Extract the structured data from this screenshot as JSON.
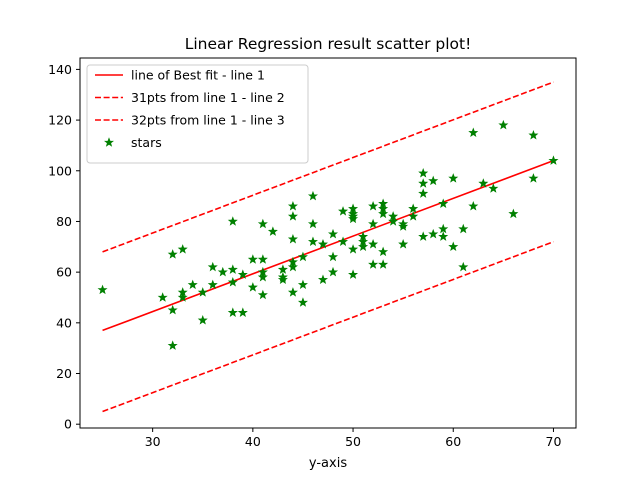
{
  "chart_data": {
    "type": "scatter",
    "title": "Linear Regression result scatter plot!",
    "xlabel": "y-axis",
    "ylabel": "",
    "xlim": [
      22.75,
      72.25
    ],
    "ylim": [
      -1.5,
      144.5
    ],
    "xticks": [
      30,
      40,
      50,
      60,
      70
    ],
    "yticks": [
      0,
      20,
      40,
      60,
      80,
      100,
      120,
      140
    ],
    "grid": false,
    "legend_position": "top-left",
    "lines": [
      {
        "name": "line of Best fit - line 1",
        "color": "#ff0000",
        "style": "solid",
        "x": [
          25,
          70
        ],
        "y": [
          37,
          104
        ]
      },
      {
        "name": "31pts from line 1 - line 2",
        "color": "#ff0000",
        "style": "dashed",
        "x": [
          25,
          70
        ],
        "y": [
          68,
          135
        ]
      },
      {
        "name": "32pts from line 1 - line 3",
        "color": "#ff0000",
        "style": "dashed",
        "x": [
          25,
          70
        ],
        "y": [
          5,
          72
        ]
      }
    ],
    "scatter": {
      "name": "stars",
      "color": "#008000",
      "marker": "star",
      "points": [
        [
          25,
          53
        ],
        [
          31,
          50
        ],
        [
          32,
          31
        ],
        [
          32,
          45
        ],
        [
          32,
          67
        ],
        [
          33,
          50
        ],
        [
          33,
          52
        ],
        [
          33,
          69
        ],
        [
          34,
          55
        ],
        [
          35,
          41
        ],
        [
          35,
          52
        ],
        [
          36,
          55
        ],
        [
          36,
          62
        ],
        [
          37,
          60
        ],
        [
          38,
          44
        ],
        [
          38,
          56
        ],
        [
          38,
          61
        ],
        [
          38,
          80
        ],
        [
          39,
          44
        ],
        [
          39,
          59
        ],
        [
          40,
          54
        ],
        [
          40,
          65
        ],
        [
          41,
          51
        ],
        [
          41,
          58
        ],
        [
          41,
          60
        ],
        [
          41,
          65
        ],
        [
          41,
          79
        ],
        [
          42,
          76
        ],
        [
          43,
          57
        ],
        [
          43,
          58
        ],
        [
          43,
          61
        ],
        [
          44,
          52
        ],
        [
          44,
          62
        ],
        [
          44,
          64
        ],
        [
          44,
          73
        ],
        [
          44,
          82
        ],
        [
          44,
          86
        ],
        [
          45,
          48
        ],
        [
          45,
          55
        ],
        [
          45,
          66
        ],
        [
          46,
          72
        ],
        [
          46,
          79
        ],
        [
          46,
          90
        ],
        [
          47,
          57
        ],
        [
          47,
          71
        ],
        [
          48,
          60
        ],
        [
          48,
          66
        ],
        [
          48,
          75
        ],
        [
          49,
          72
        ],
        [
          49,
          84
        ],
        [
          50,
          59
        ],
        [
          50,
          69
        ],
        [
          50,
          81
        ],
        [
          50,
          82
        ],
        [
          50,
          83
        ],
        [
          50,
          85
        ],
        [
          51,
          70
        ],
        [
          51,
          72
        ],
        [
          51,
          74
        ],
        [
          52,
          63
        ],
        [
          52,
          71
        ],
        [
          52,
          79
        ],
        [
          52,
          86
        ],
        [
          53,
          63
        ],
        [
          53,
          68
        ],
        [
          53,
          83
        ],
        [
          53,
          85
        ],
        [
          53,
          87
        ],
        [
          54,
          80
        ],
        [
          54,
          82
        ],
        [
          55,
          71
        ],
        [
          55,
          78
        ],
        [
          55,
          79
        ],
        [
          56,
          82
        ],
        [
          56,
          85
        ],
        [
          57,
          74
        ],
        [
          57,
          91
        ],
        [
          57,
          95
        ],
        [
          57,
          99
        ],
        [
          58,
          75
        ],
        [
          58,
          96
        ],
        [
          59,
          74
        ],
        [
          59,
          77
        ],
        [
          59,
          87
        ],
        [
          60,
          70
        ],
        [
          60,
          97
        ],
        [
          61,
          62
        ],
        [
          61,
          77
        ],
        [
          62,
          86
        ],
        [
          62,
          115
        ],
        [
          63,
          95
        ],
        [
          64,
          93
        ],
        [
          65,
          118
        ],
        [
          66,
          83
        ],
        [
          68,
          97
        ],
        [
          68,
          114
        ],
        [
          70,
          104
        ]
      ]
    }
  }
}
